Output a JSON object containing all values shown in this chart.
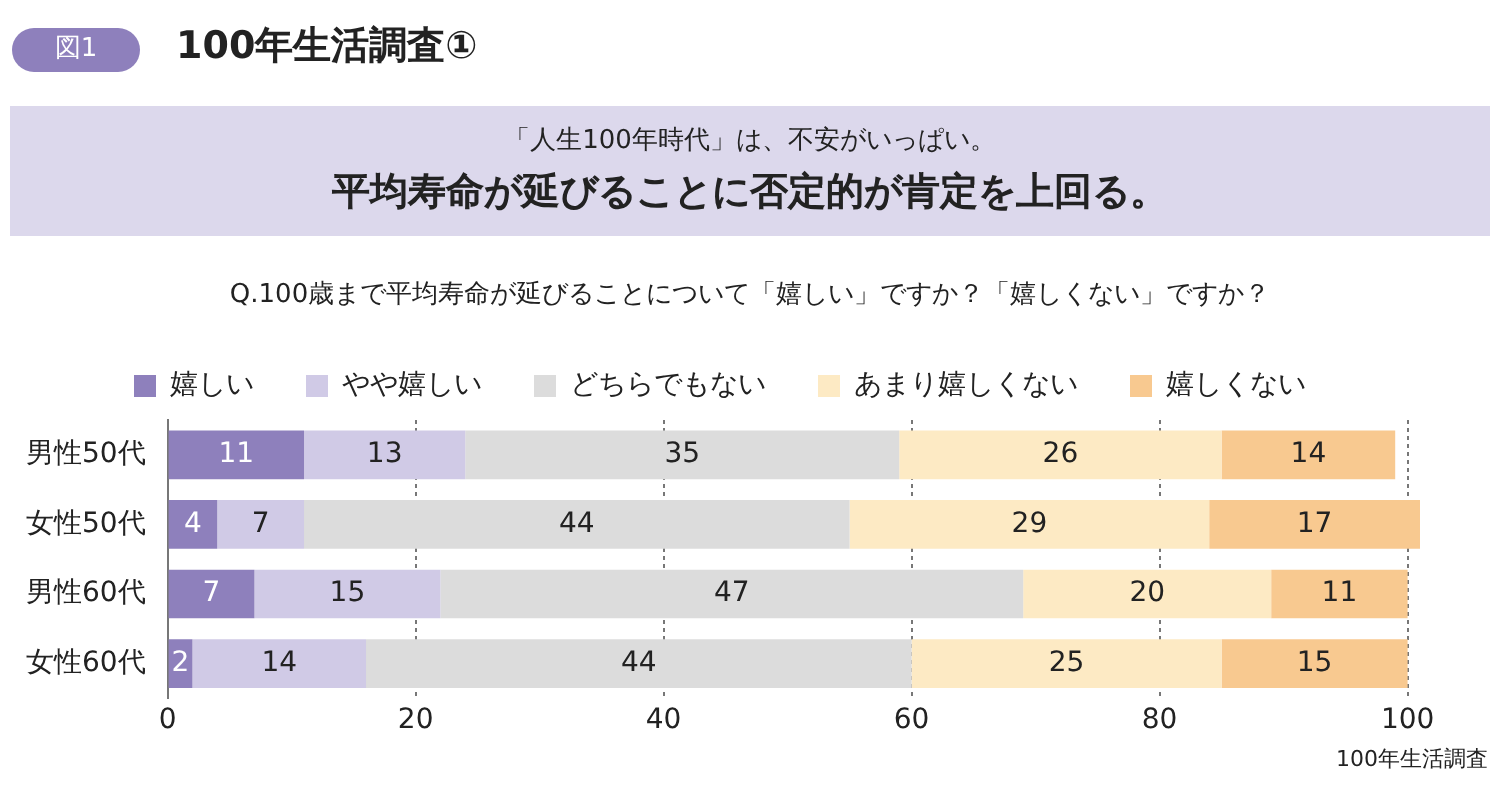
{
  "chart_data": {
    "type": "bar",
    "orientation": "horizontal",
    "stacked": true,
    "title": "100年生活調査①",
    "subtitle": "「人生100年時代」は、不安がいっぱい。",
    "annotations": [
      "図1",
      "平均寿命が延びることに否定的が肯定を上回る。",
      "Q.100歳まで平均寿命が延びることについて「嬉しい」ですか？「嬉しくない」ですか？",
      "100年生活調査"
    ],
    "categories": [
      "男性50代",
      "女性50代",
      "男性60代",
      "女性60代"
    ],
    "series": [
      {
        "name": "嬉しい",
        "color": "#8e80bc",
        "values": [
          11,
          4,
          7,
          2
        ]
      },
      {
        "name": "やや嬉しい",
        "color": "#d0cae6",
        "values": [
          13,
          7,
          15,
          14
        ]
      },
      {
        "name": "どちらでもない",
        "color": "#dcdcdc",
        "values": [
          35,
          44,
          47,
          44
        ]
      },
      {
        "name": "あまり嬉しくない",
        "color": "#fdeac4",
        "values": [
          26,
          29,
          20,
          25
        ]
      },
      {
        "name": "嬉しくない",
        "color": "#f8c990",
        "values": [
          14,
          17,
          11,
          15
        ]
      }
    ],
    "xlim": [
      0,
      101
    ],
    "xticks": [
      0,
      20,
      40,
      60,
      80,
      100
    ],
    "grid": "x",
    "legend": "top",
    "data_labels": true
  }
}
